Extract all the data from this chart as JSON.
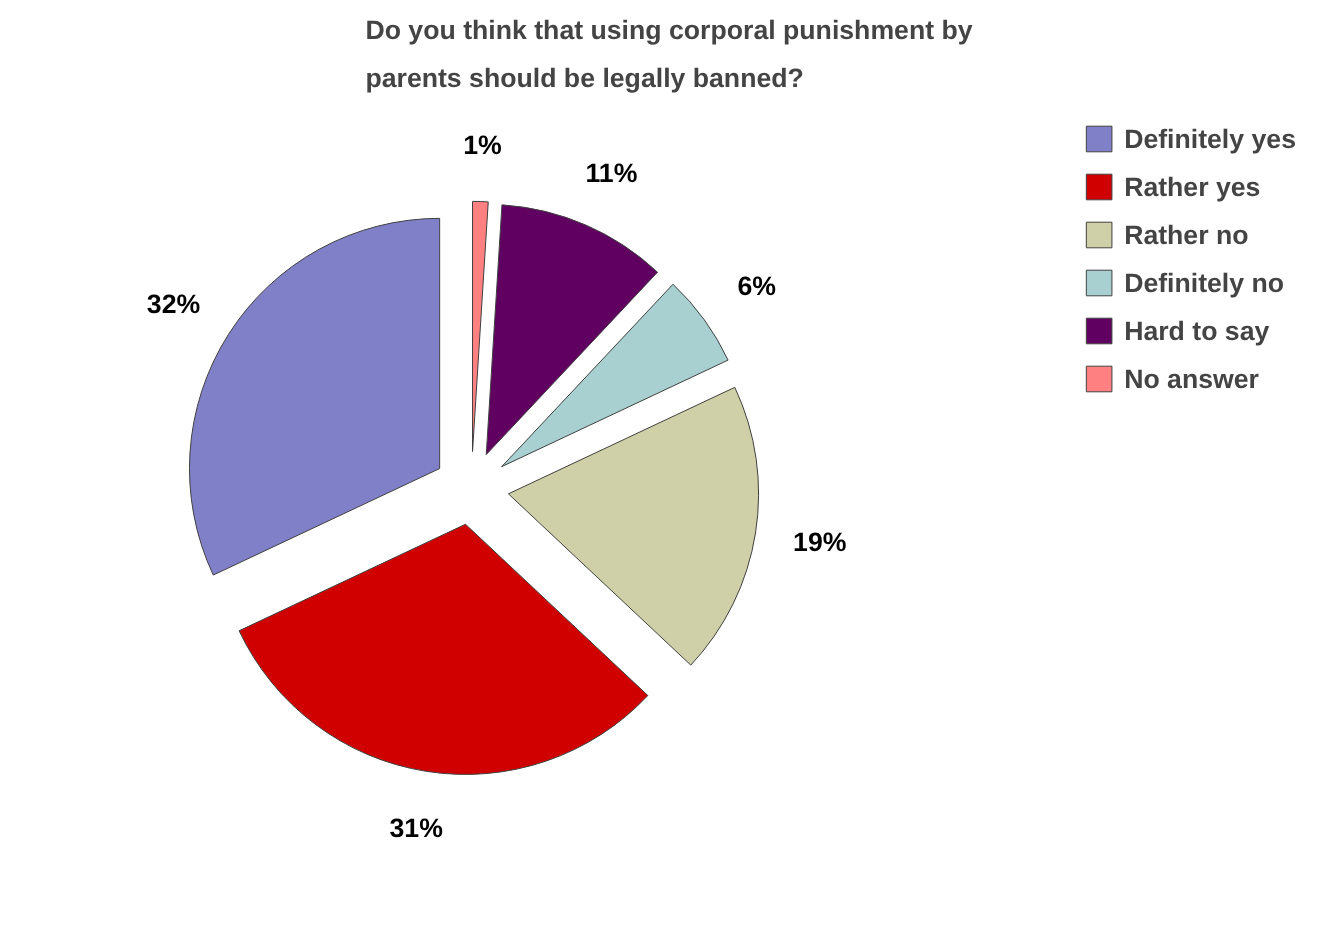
{
  "chart_data": {
    "type": "pie",
    "title": "Do you think that using corporal punishment by parents should be legally banned?",
    "categories": [
      "Definitely yes",
      "Rather yes",
      "Rather no",
      "Definitely no",
      "Hard to say",
      "No answer"
    ],
    "values": [
      32,
      31,
      19,
      6,
      11,
      1
    ],
    "colors": [
      "#8080c8",
      "#d00000",
      "#d0d0a8",
      "#a8d0d0",
      "#600060",
      "#ff8080"
    ],
    "value_labels": [
      "32%",
      "31%",
      "19%",
      "6%",
      "11%",
      "1%"
    ],
    "legend": "right"
  }
}
